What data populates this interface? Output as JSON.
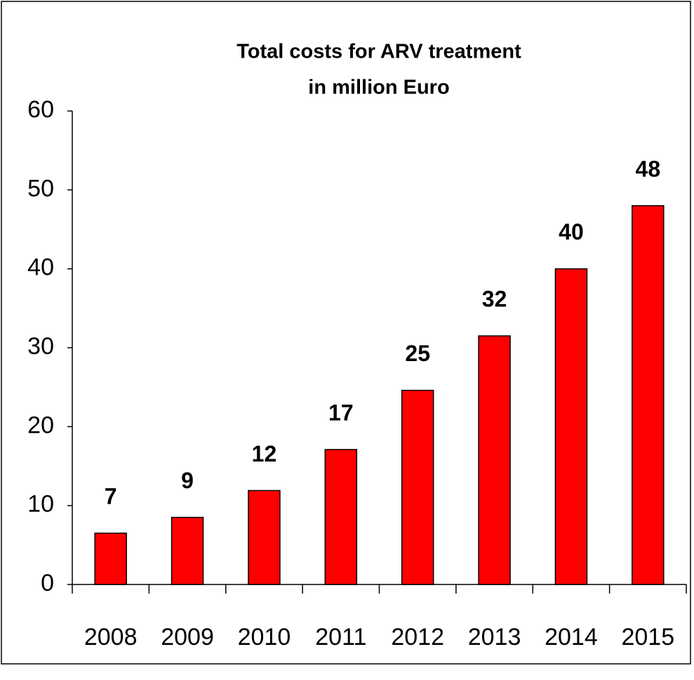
{
  "chart_data": {
    "type": "bar",
    "title": [
      "Total costs for ARV treatment",
      "in million Euro"
    ],
    "categories": [
      "2008",
      "2009",
      "2010",
      "2011",
      "2012",
      "2013",
      "2014",
      "2015"
    ],
    "values": [
      6.5,
      8.5,
      11.9,
      17.1,
      24.6,
      31.5,
      40,
      48
    ],
    "value_labels": [
      "7",
      "9",
      "12",
      "17",
      "25",
      "32",
      "40",
      "48"
    ],
    "color": "#ff0000",
    "ylim": [
      0,
      60
    ],
    "yticks": [
      0,
      10,
      20,
      30,
      40,
      50,
      60
    ],
    "grid": false
  }
}
